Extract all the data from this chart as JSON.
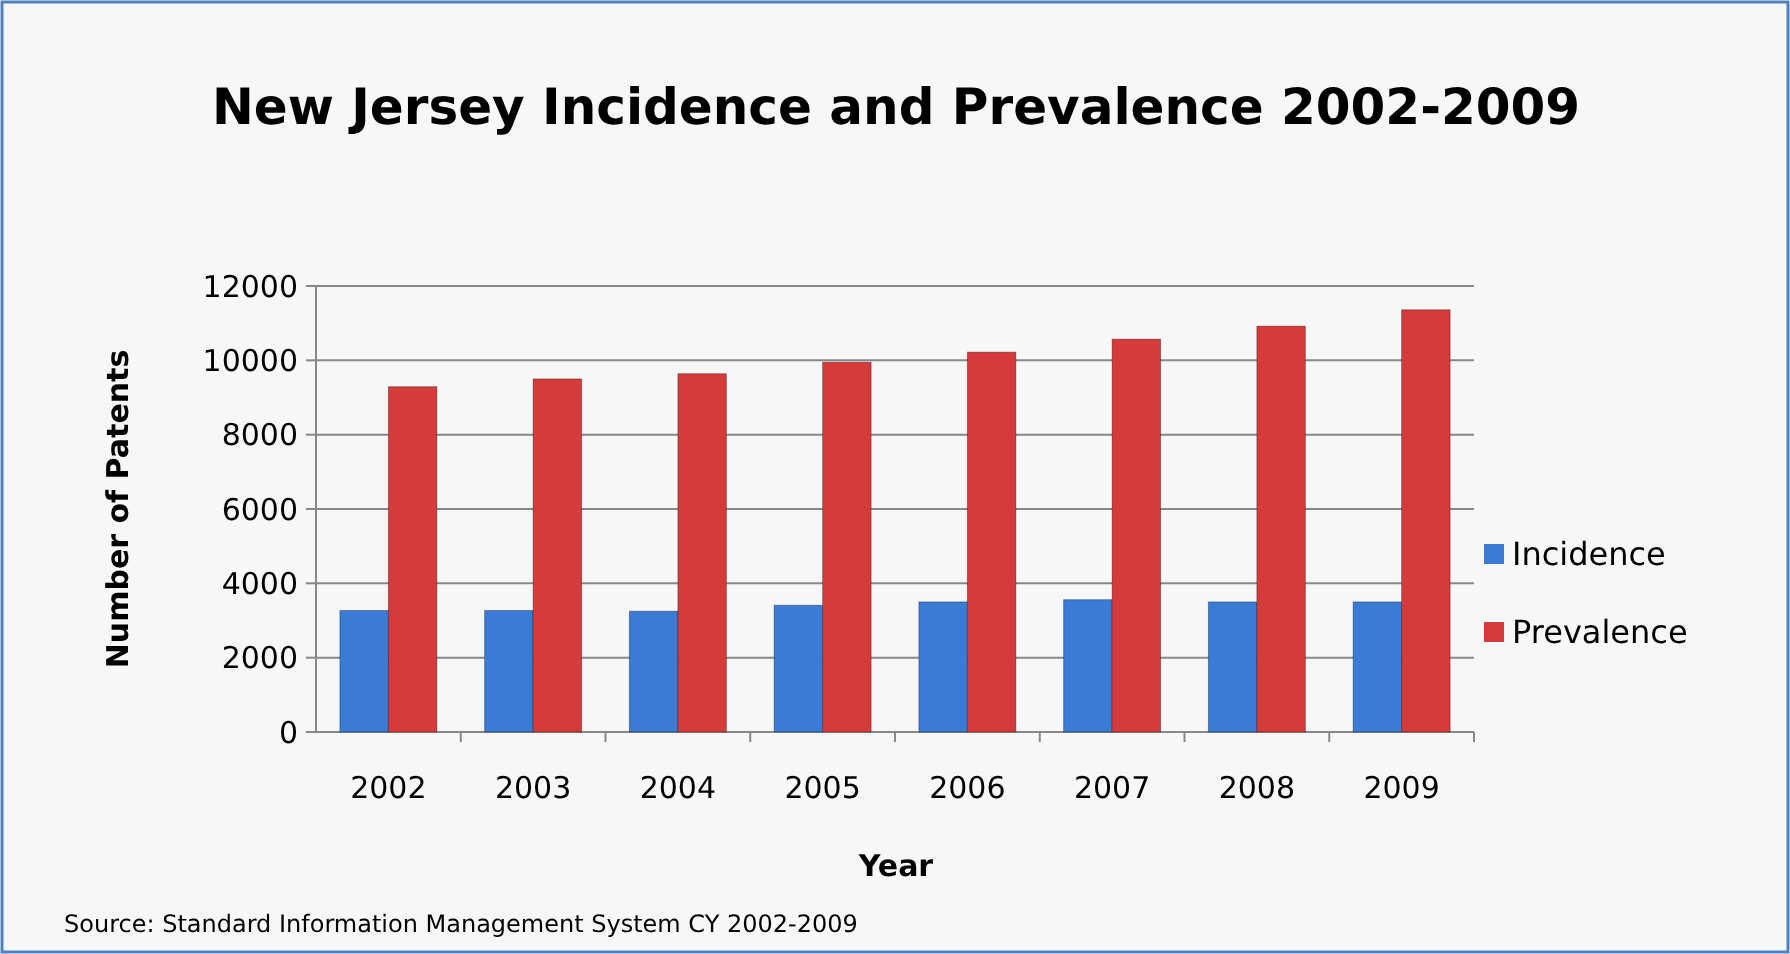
{
  "chart_data": {
    "type": "bar",
    "title": "New Jersey Incidence and Prevalence 2002-2009",
    "xlabel": "Year",
    "ylabel": "Number of Patents",
    "categories": [
      "2002",
      "2003",
      "2004",
      "2005",
      "2006",
      "2007",
      "2008",
      "2009"
    ],
    "series": [
      {
        "name": "Incidence",
        "color": "#3a7bd5",
        "values": [
          3270,
          3270,
          3250,
          3410,
          3500,
          3560,
          3500,
          3500
        ]
      },
      {
        "name": "Prevalence",
        "color": "#d63b3b",
        "values": [
          9290,
          9500,
          9640,
          9950,
          10220,
          10570,
          10920,
          11360
        ]
      }
    ],
    "ylim": [
      0,
      12000
    ],
    "yticks": [
      0,
      2000,
      4000,
      6000,
      8000,
      10000,
      12000
    ],
    "grid": "y",
    "legend": "right",
    "annotations": [
      "Source: Standard Information Management System CY 2002-2009"
    ]
  }
}
